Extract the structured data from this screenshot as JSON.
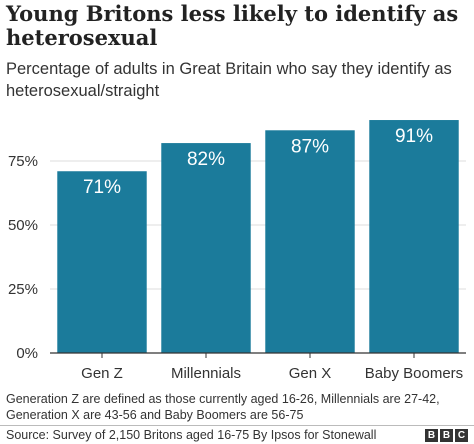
{
  "chart_data": {
    "type": "bar",
    "title": "Young Britons less likely to identify as heterosexual",
    "subtitle": "Percentage of adults in Great Britain who say they identify as heterosexual/straight",
    "categories": [
      "Gen Z",
      "Millennials",
      "Gen X",
      "Baby Boomers"
    ],
    "values": [
      71,
      82,
      87,
      91
    ],
    "data_labels": [
      "71%",
      "82%",
      "87%",
      "91%"
    ],
    "ylim": [
      0,
      100
    ],
    "yticks": [
      0,
      25,
      50,
      75
    ],
    "ytick_labels": [
      "0%",
      "25%",
      "50%",
      "75%"
    ],
    "grid": true,
    "bar_color": "#1b7b9b"
  },
  "note": "Generation Z are defined as those currently aged 16-26, Millennials are 27-42, Generation X are 43-56 and Baby Boomers are 56-75",
  "source": "Source: Survey of 2,150 Britons aged 16-75 By Ipsos for Stonewall",
  "logo": {
    "letters": [
      "B",
      "B",
      "C"
    ]
  }
}
